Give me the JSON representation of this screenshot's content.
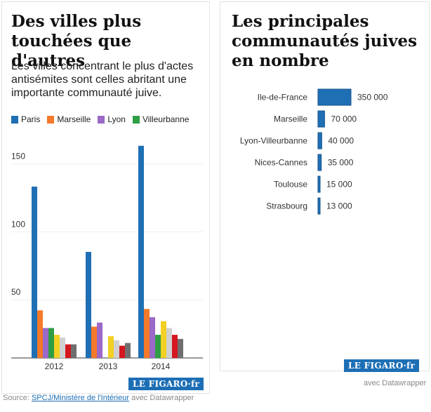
{
  "left": {
    "title": "Des villes plus touchées que d'autres",
    "subtitle": "Les villes concentrant le plus d'actes antisémites sont celles abritant une importante communauté juive.",
    "logo": "LE FIGARO·fr"
  },
  "right": {
    "title": "Les principales communautés juives en nombre",
    "logo": "LE FIGARO·fr",
    "credit": "avec Datawrapper"
  },
  "footer": {
    "source_prefix": "Source: ",
    "source_link": "SPCJ/Ministère de l'Intérieur",
    "source_suffix": " avec Datawrapper"
  },
  "chart_data": [
    {
      "type": "bar",
      "title": "Des villes plus touchées que d'autres",
      "categories": [
        "2012",
        "2013",
        "2014"
      ],
      "ylim": [
        0,
        160
      ],
      "yticks": [
        50,
        100,
        150
      ],
      "legend_position": "top",
      "series": [
        {
          "name": "Paris",
          "color": "#1f6fb4",
          "values": [
            126,
            78,
            156
          ]
        },
        {
          "name": "Marseille",
          "color": "#f5792a",
          "values": [
            35,
            23,
            36
          ]
        },
        {
          "name": "Lyon",
          "color": "#9b69c7",
          "values": [
            22,
            26,
            30
          ]
        },
        {
          "name": "Villeurbanne",
          "color": "#2f9e44",
          "values": [
            22,
            0,
            17
          ]
        },
        {
          "name": "",
          "color": "#f2d024",
          "values": [
            17,
            16,
            27
          ]
        },
        {
          "name": "",
          "color": "#d0d0d0",
          "values": [
            15,
            13,
            22
          ]
        },
        {
          "name": "",
          "color": "#d4171f",
          "values": [
            10,
            9,
            17
          ]
        },
        {
          "name": "",
          "color": "#6f6f6f",
          "values": [
            10,
            11,
            14
          ]
        }
      ]
    },
    {
      "type": "bar",
      "orientation": "horizontal",
      "title": "Les principales communautés juives en nombre",
      "color": "#1f6fb4",
      "categories": [
        "Ile-de-France",
        "Marseille",
        "Lyon-Villeurbanne",
        "Nices-Cannes",
        "Toulouse",
        "Strasbourg"
      ],
      "values": [
        350000,
        70000,
        40000,
        35000,
        15000,
        13000
      ],
      "value_labels": [
        "350 000",
        "70 000",
        "40 000",
        "35 000",
        "15 000",
        "13 000"
      ]
    }
  ]
}
